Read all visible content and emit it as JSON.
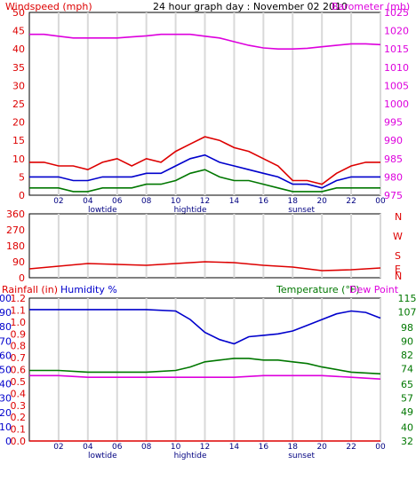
{
  "page": {
    "title": "24 hour graph day : November 02 2010"
  },
  "chart_data": [
    {
      "id": "top",
      "type": "line",
      "left_label": "Windspeed (mph)",
      "right_label": "Barometer (mb)",
      "left_axis": {
        "ticks": [
          0,
          5,
          10,
          15,
          20,
          25,
          30,
          35,
          40,
          45,
          50
        ],
        "ylim": [
          0,
          50
        ]
      },
      "right_axis": {
        "ticks": [
          975,
          980,
          985,
          990,
          995,
          1000,
          1005,
          1010,
          1015,
          1020,
          1025
        ],
        "ylim": [
          975,
          1025
        ]
      },
      "x_ticks": [
        "02",
        "04",
        "06",
        "08",
        "10",
        "12",
        "14",
        "16",
        "18",
        "20",
        "22",
        "00"
      ],
      "x_annotations": [
        {
          "label": "lowtide",
          "hour": 5
        },
        {
          "label": "hightide",
          "hour": 11
        },
        {
          "label": "sunset",
          "hour": 18.6
        }
      ],
      "series": [
        {
          "axis": "right",
          "color": "#dd00dd",
          "hours": [
            0,
            1,
            2,
            3,
            4,
            5,
            6,
            7,
            8,
            9,
            10,
            11,
            12,
            13,
            14,
            15,
            16,
            17,
            18,
            19,
            20,
            21,
            22,
            23,
            24
          ],
          "values": [
            1019,
            1019,
            1018.5,
            1018,
            1018,
            1018,
            1018,
            1018.3,
            1018.6,
            1019,
            1019,
            1019,
            1018.5,
            1018,
            1017,
            1016,
            1015.3,
            1015,
            1015,
            1015.2,
            1015.6,
            1016,
            1016.4,
            1016.4,
            1016.2
          ]
        },
        {
          "axis": "left",
          "color": "#dd0000",
          "hours": [
            0,
            1,
            2,
            3,
            4,
            5,
            6,
            7,
            8,
            9,
            10,
            11,
            12,
            13,
            14,
            15,
            16,
            17,
            18,
            19,
            20,
            21,
            22,
            23,
            24
          ],
          "values": [
            9,
            9,
            8,
            8,
            7,
            9,
            10,
            8,
            10,
            9,
            12,
            14,
            16,
            15,
            13,
            12,
            10,
            8,
            4,
            4,
            3,
            6,
            8,
            9,
            9
          ]
        },
        {
          "axis": "left",
          "color": "#0000cc",
          "hours": [
            0,
            1,
            2,
            3,
            4,
            5,
            6,
            7,
            8,
            9,
            10,
            11,
            12,
            13,
            14,
            15,
            16,
            17,
            18,
            19,
            20,
            21,
            22,
            23,
            24
          ],
          "values": [
            5,
            5,
            5,
            4,
            4,
            5,
            5,
            5,
            6,
            6,
            8,
            10,
            11,
            9,
            8,
            7,
            6,
            5,
            3,
            3,
            2,
            4,
            5,
            5,
            5
          ]
        },
        {
          "axis": "left",
          "color": "#007700",
          "hours": [
            0,
            1,
            2,
            3,
            4,
            5,
            6,
            7,
            8,
            9,
            10,
            11,
            12,
            13,
            14,
            15,
            16,
            17,
            18,
            19,
            20,
            21,
            22,
            23,
            24
          ],
          "values": [
            2,
            2,
            2,
            1,
            1,
            2,
            2,
            2,
            3,
            3,
            4,
            6,
            7,
            5,
            4,
            4,
            3,
            2,
            1,
            1,
            1,
            2,
            2,
            2,
            2
          ]
        }
      ]
    },
    {
      "id": "mid",
      "type": "line",
      "left_axis": {
        "ticks": [
          0,
          90,
          180,
          270,
          360
        ],
        "ylim": [
          0,
          360
        ]
      },
      "right_compass": [
        "N",
        "W",
        "S",
        "E",
        "N"
      ],
      "series": [
        {
          "axis": "left",
          "color": "#dd0000",
          "hours": [
            0,
            2,
            4,
            6,
            8,
            10,
            12,
            14,
            16,
            18,
            20,
            22,
            24
          ],
          "values": [
            50,
            65,
            80,
            75,
            70,
            80,
            90,
            85,
            70,
            60,
            40,
            45,
            55
          ]
        }
      ]
    },
    {
      "id": "bottom",
      "type": "line",
      "labels": {
        "rainfall": "Rainfall (in)",
        "humidity": "Humidity %",
        "temperature": "Temperature (°F)",
        "dewpoint": "Dew Point"
      },
      "humidity_axis": {
        "ticks": [
          0,
          10,
          20,
          30,
          40,
          50,
          60,
          70,
          80,
          90,
          100
        ],
        "ylim": [
          0,
          100
        ]
      },
      "rain_axis": {
        "ticks": [
          "0.0",
          "0.1",
          "0.2",
          "0.3",
          "0.4",
          "0.5",
          "0.6",
          "0.7",
          "0.8",
          "0.9",
          "1.0",
          "1.1",
          "1.2"
        ],
        "ylim": [
          0,
          1.2
        ]
      },
      "temp_axis": {
        "ticks": [
          32,
          40,
          49,
          57,
          65,
          74,
          82,
          90,
          98,
          107,
          115
        ],
        "ylim": [
          32,
          115
        ]
      },
      "series": [
        {
          "axis": "humidity",
          "color": "#0000cc",
          "hours": [
            0,
            2,
            4,
            6,
            8,
            10,
            11,
            12,
            13,
            14,
            15,
            16,
            17,
            18,
            19,
            20,
            21,
            22,
            23,
            24
          ],
          "values": [
            92,
            92,
            92,
            92,
            92,
            91,
            85,
            76,
            71,
            68,
            73,
            74,
            75,
            77,
            81,
            85,
            89,
            91,
            90,
            86
          ]
        },
        {
          "axis": "temp",
          "color": "#007700",
          "hours": [
            0,
            2,
            4,
            6,
            8,
            10,
            11,
            12,
            13,
            14,
            15,
            16,
            17,
            18,
            19,
            20,
            22,
            24
          ],
          "values": [
            73,
            73,
            72,
            72,
            72,
            73,
            75,
            78,
            79,
            80,
            80,
            79,
            79,
            78,
            77,
            75,
            72,
            71
          ]
        },
        {
          "axis": "temp",
          "color": "#dd00dd",
          "hours": [
            0,
            2,
            4,
            6,
            8,
            10,
            12,
            14,
            16,
            18,
            20,
            22,
            24
          ],
          "values": [
            70,
            70,
            69,
            69,
            69,
            69,
            69,
            69,
            70,
            70,
            70,
            69,
            68
          ]
        },
        {
          "axis": "rain",
          "color": "#dd0000",
          "hours": [
            0,
            24
          ],
          "values": [
            0,
            0
          ]
        }
      ],
      "x_ticks": [
        "02",
        "04",
        "06",
        "08",
        "10",
        "12",
        "14",
        "16",
        "18",
        "20",
        "22",
        "00"
      ],
      "x_annotations": [
        {
          "label": "lowtide",
          "hour": 5
        },
        {
          "label": "hightide",
          "hour": 11
        },
        {
          "label": "sunset",
          "hour": 18.6
        }
      ]
    }
  ]
}
